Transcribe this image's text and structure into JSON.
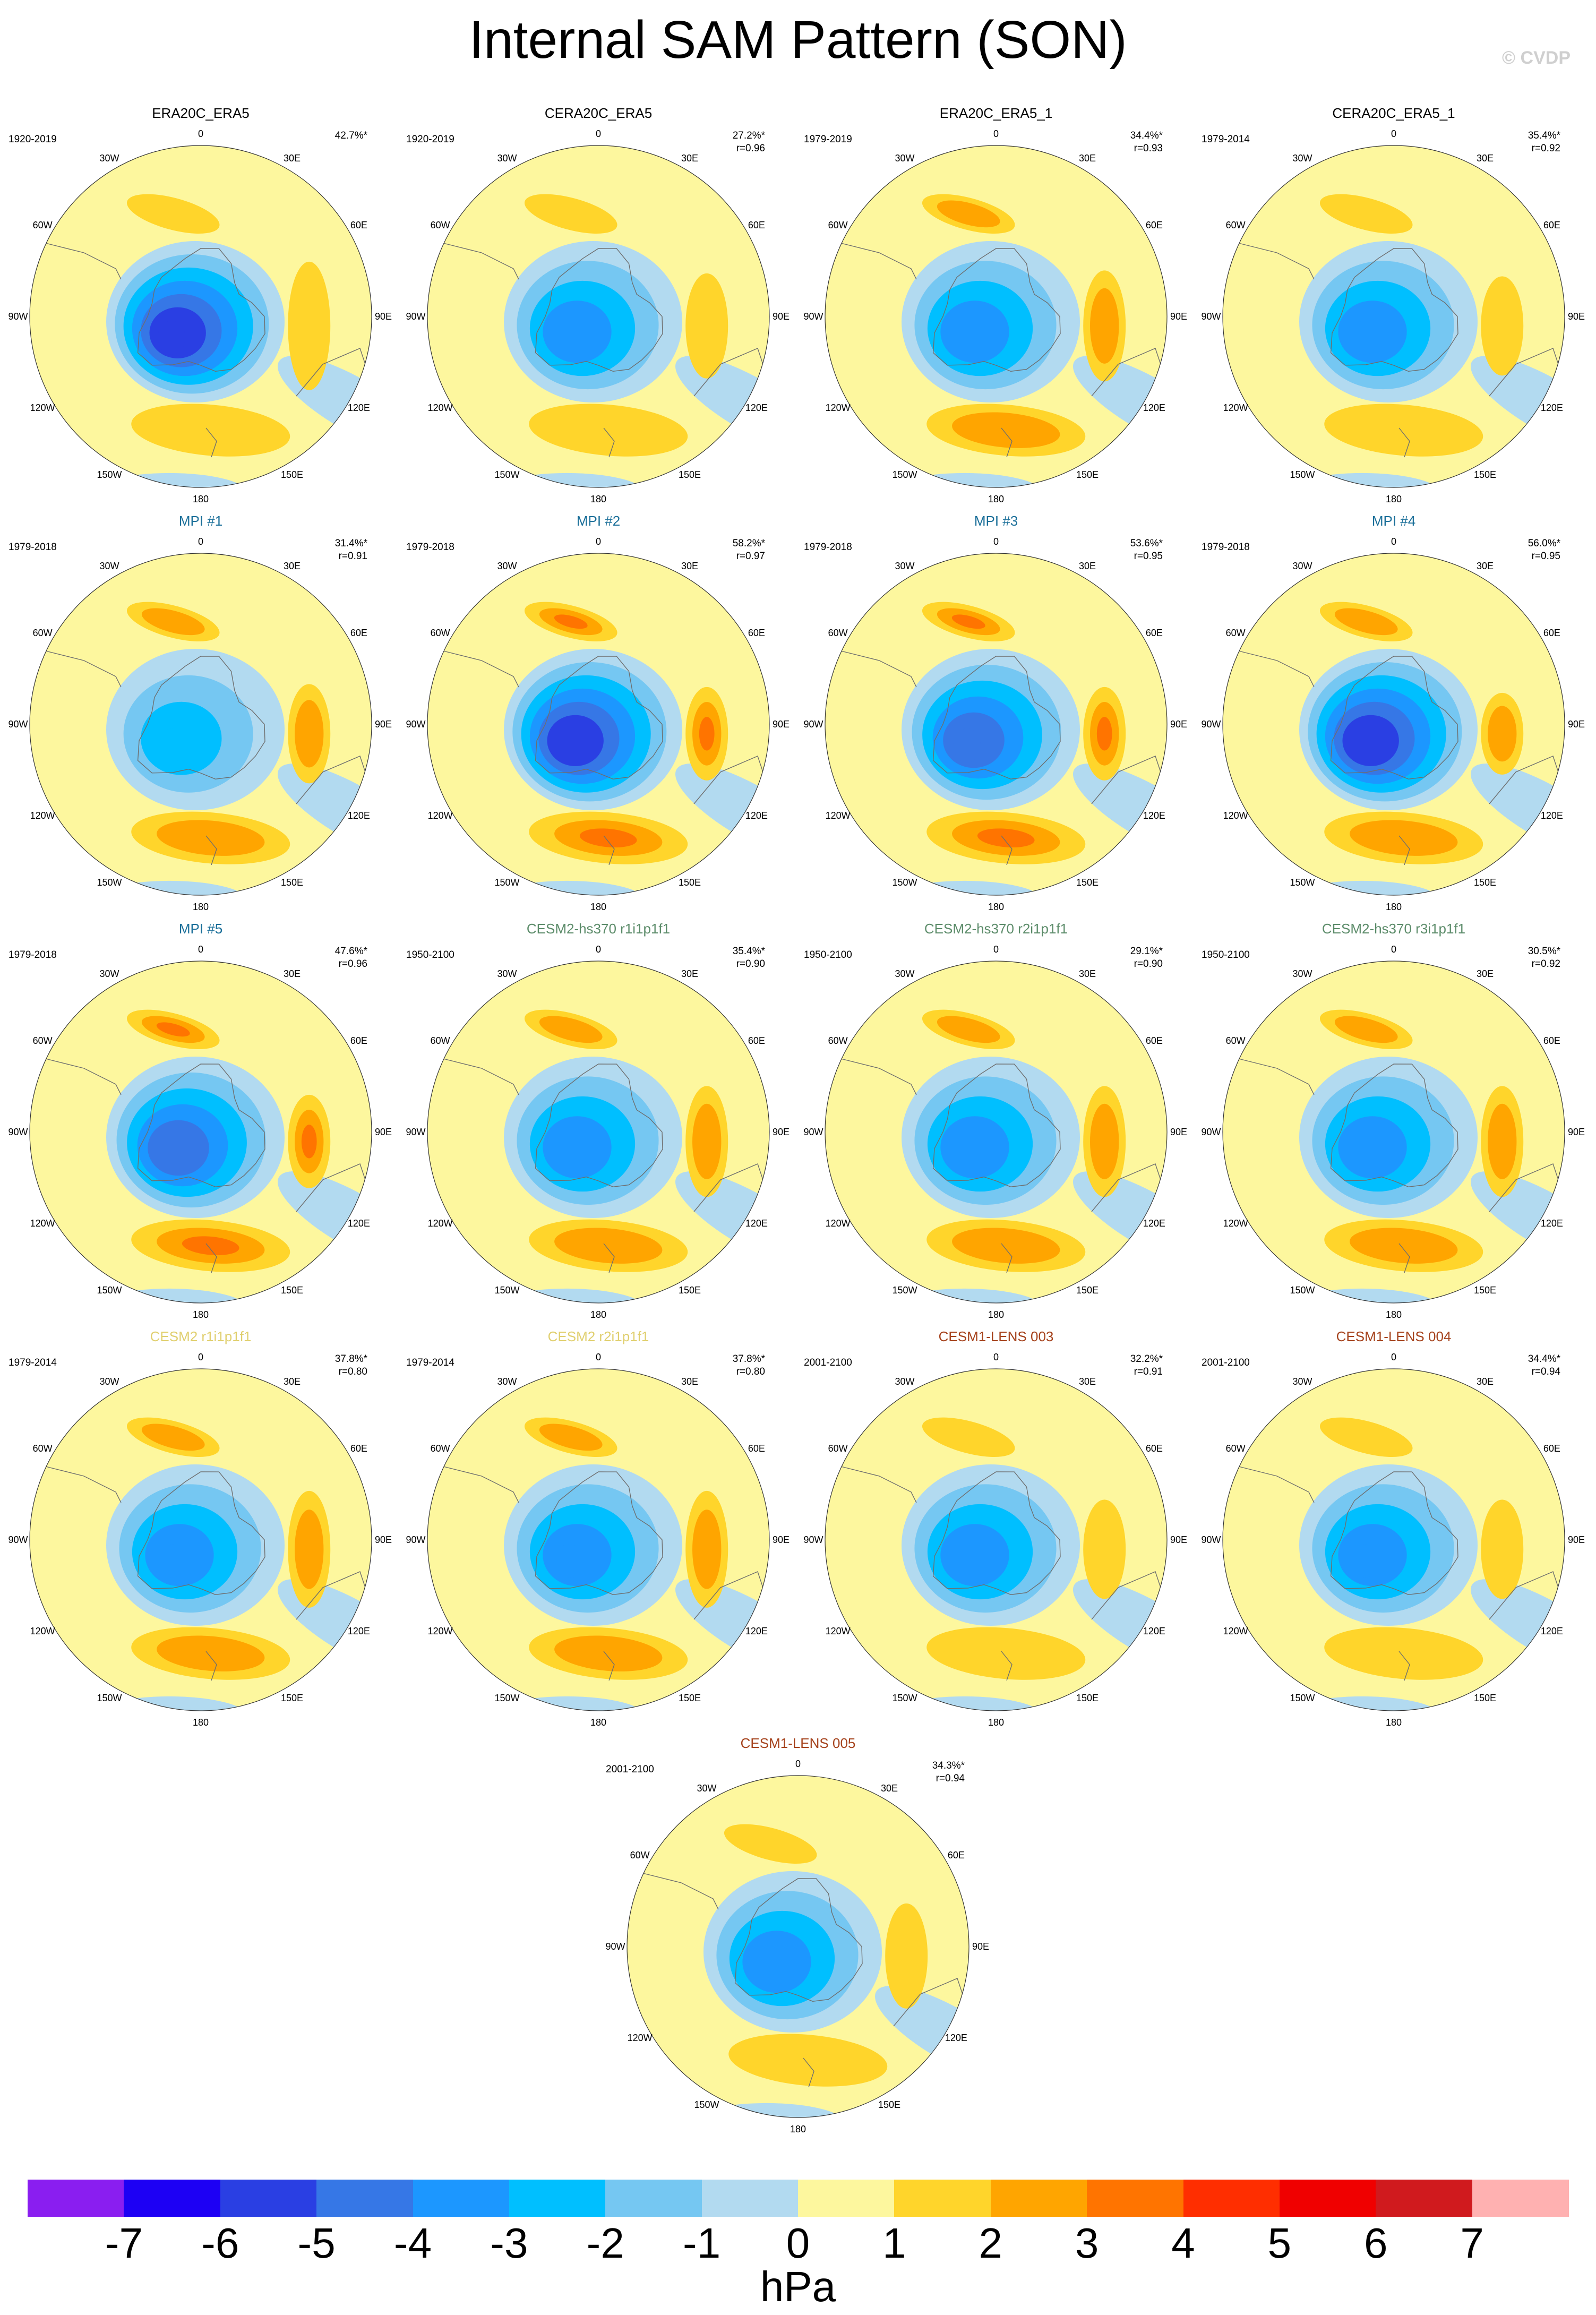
{
  "title": "Internal SAM Pattern (SON)",
  "copyright": "© CVDP",
  "chart_data": {
    "type": "heatmap",
    "projection": "south-polar stereographic",
    "variable": "sea level pressure anomaly",
    "units": "hPa",
    "levels": [
      -7,
      -6,
      -5,
      -4,
      -3,
      -2,
      -1,
      0,
      1,
      2,
      3,
      4,
      5,
      6,
      7
    ],
    "colors": [
      "#8a1ef0",
      "#1d00f4",
      "#2a3fe3",
      "#3677e6",
      "#1c97ff",
      "#00bfff",
      "#75c7f2",
      "#b2daf0",
      "#fdf79e",
      "#ffd52b",
      "#ffa500",
      "#ff7400",
      "#ff2e00",
      "#f00000",
      "#d01a1e",
      "#ffb1b1"
    ],
    "longitude_labels": [
      "0",
      "30E",
      "60E",
      "90E",
      "120E",
      "150E",
      "180",
      "150W",
      "120W",
      "90W",
      "60W",
      "30W"
    ],
    "panels": [
      {
        "title": "ERA20C_ERA5",
        "title_color": "#000000",
        "years": "1920-2019",
        "pct": "42.7%*",
        "r": "",
        "center_min": -5.6,
        "ring_max": 1.6,
        "ring_bias": 1.0
      },
      {
        "title": "CERA20C_ERA5",
        "title_color": "#000000",
        "years": "1920-2019",
        "pct": "27.2%*",
        "r": "r=0.96",
        "center_min": -3.2,
        "ring_max": 1.7,
        "ring_bias": 0.6
      },
      {
        "title": "ERA20C_ERA5_1",
        "title_color": "#000000",
        "years": "1979-2019",
        "pct": "34.4%*",
        "r": "r=0.93",
        "center_min": -3.6,
        "ring_max": 2.2,
        "ring_bias": 0.7
      },
      {
        "title": "CERA20C_ERA5_1",
        "title_color": "#000000",
        "years": "1979-2014",
        "pct": "35.4%*",
        "r": "r=0.92",
        "center_min": -4.0,
        "ring_max": 1.8,
        "ring_bias": 0.5
      },
      {
        "title": "MPI #1",
        "title_color": "#1b6f99",
        "years": "1979-2018",
        "pct": "31.4%*",
        "r": "r=0.91",
        "center_min": -2.9,
        "ring_max": 2.3,
        "ring_bias": 0.5
      },
      {
        "title": "MPI #2",
        "title_color": "#1b6f99",
        "years": "1979-2018",
        "pct": "58.2%*",
        "r": "r=0.97",
        "center_min": -5.3,
        "ring_max": 3.2,
        "ring_bias": 0.4
      },
      {
        "title": "MPI #3",
        "title_color": "#1b6f99",
        "years": "1979-2018",
        "pct": "53.6%*",
        "r": "r=0.95",
        "center_min": -4.6,
        "ring_max": 3.1,
        "ring_bias": 0.4
      },
      {
        "title": "MPI #4",
        "title_color": "#1b6f99",
        "years": "1979-2018",
        "pct": "56.0%*",
        "r": "r=0.95",
        "center_min": -5.4,
        "ring_max": 2.8,
        "ring_bias": 0.2
      },
      {
        "title": "MPI #5",
        "title_color": "#1b6f99",
        "years": "1979-2018",
        "pct": "47.6%*",
        "r": "r=0.96",
        "center_min": -4.4,
        "ring_max": 3.4,
        "ring_bias": 0.4
      },
      {
        "title": "CESM2-hs370 r1i1p1f1",
        "title_color": "#5c8c6a",
        "years": "1950-2100",
        "pct": "35.4%*",
        "r": "r=0.90",
        "center_min": -3.4,
        "ring_max": 2.4,
        "ring_bias": 0.7
      },
      {
        "title": "CESM2-hs370 r2i1p1f1",
        "title_color": "#5c8c6a",
        "years": "1950-2100",
        "pct": "29.1%*",
        "r": "r=0.90",
        "center_min": -3.2,
        "ring_max": 2.4,
        "ring_bias": 0.7
      },
      {
        "title": "CESM2-hs370 r3i1p1f1",
        "title_color": "#5c8c6a",
        "years": "1950-2100",
        "pct": "30.5%*",
        "r": "r=0.92",
        "center_min": -3.4,
        "ring_max": 2.3,
        "ring_bias": 0.7
      },
      {
        "title": "CESM2 r1i1p1f1",
        "title_color": "#e0cf6e",
        "years": "1979-2014",
        "pct": "37.8%*",
        "r": "r=0.80",
        "center_min": -3.8,
        "ring_max": 2.5,
        "ring_bias": 0.8
      },
      {
        "title": "CESM2 r2i1p1f1",
        "title_color": "#e0cf6e",
        "years": "1979-2014",
        "pct": "37.8%*",
        "r": "r=0.80",
        "center_min": -3.8,
        "ring_max": 2.5,
        "ring_bias": 0.8
      },
      {
        "title": "CESM1-LENS 003",
        "title_color": "#a5421c",
        "years": "2001-2100",
        "pct": "32.2%*",
        "r": "r=0.91",
        "center_min": -3.4,
        "ring_max": 1.8,
        "ring_bias": 0.5
      },
      {
        "title": "CESM1-LENS 004",
        "title_color": "#a5421c",
        "years": "2001-2100",
        "pct": "34.4%*",
        "r": "r=0.94",
        "center_min": -3.5,
        "ring_max": 1.8,
        "ring_bias": 0.5
      },
      {
        "title": "CESM1-LENS 005",
        "title_color": "#a5421c",
        "years": "2001-2100",
        "pct": "34.3%*",
        "r": "r=0.94",
        "center_min": -3.4,
        "ring_max": 1.8,
        "ring_bias": 0.6
      }
    ]
  }
}
